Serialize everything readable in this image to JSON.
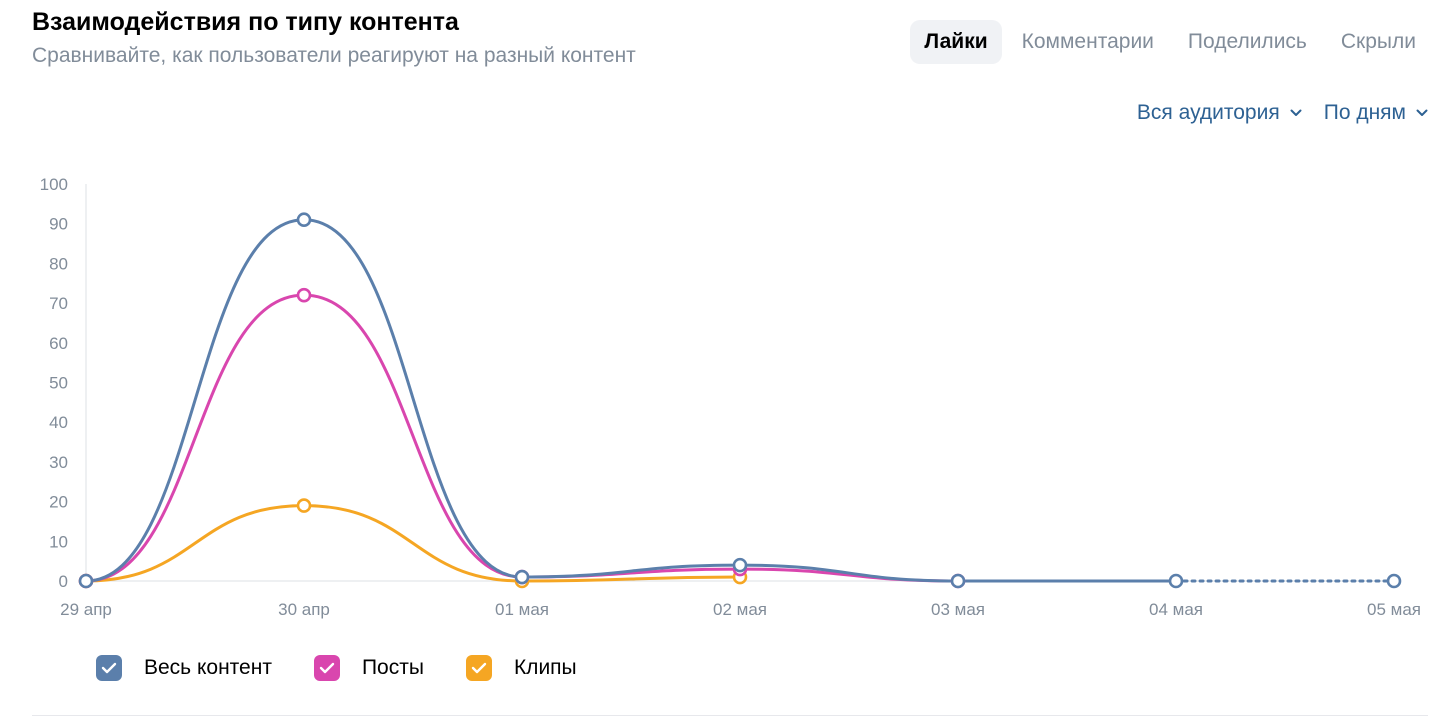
{
  "header": {
    "title": "Взаимодействия по типу контента",
    "subtitle": "Сравнивайте, как пользователи реагируют на разный контент"
  },
  "tabs": [
    {
      "label": "Лайки",
      "active": true
    },
    {
      "label": "Комментарии",
      "active": false
    },
    {
      "label": "Поделились",
      "active": false
    },
    {
      "label": "Скрыли",
      "active": false
    }
  ],
  "filters": {
    "audience": "Вся аудитория",
    "period": "По дням"
  },
  "colors": {
    "accent": "#2d6193",
    "all": "#5b7fab",
    "posts": "#d946ae",
    "clips": "#f5a623",
    "grid": "#dce1e6",
    "muted": "#818c99"
  },
  "legend": [
    {
      "label": "Весь контент",
      "color": "#5b7fab",
      "checked": true
    },
    {
      "label": "Посты",
      "color": "#d946ae",
      "checked": true
    },
    {
      "label": "Клипы",
      "color": "#f5a623",
      "checked": true
    }
  ],
  "chart_data": {
    "type": "line",
    "x": [
      "29 апр",
      "30 апр",
      "01 мая",
      "02 мая",
      "03 мая",
      "04 мая",
      "05 мая"
    ],
    "ylim": [
      0,
      100
    ],
    "yticks": [
      0,
      10,
      20,
      30,
      40,
      50,
      60,
      70,
      80,
      90,
      100
    ],
    "grid": false,
    "series": [
      {
        "name": "Весь контент",
        "color": "#5b7fab",
        "values": [
          0,
          91,
          1,
          4,
          0,
          0,
          0
        ],
        "dashed_from_index": 5
      },
      {
        "name": "Посты",
        "color": "#d946ae",
        "values": [
          0,
          72,
          1,
          3,
          0,
          null,
          null
        ]
      },
      {
        "name": "Клипы",
        "color": "#f5a623",
        "values": [
          0,
          19,
          0,
          1,
          null,
          null,
          null
        ]
      }
    ]
  }
}
